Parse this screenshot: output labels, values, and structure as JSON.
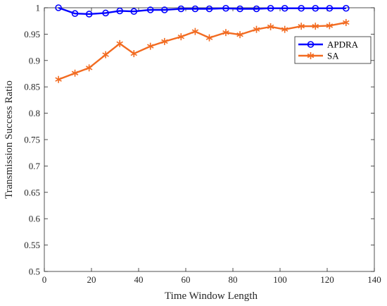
{
  "chart_data": {
    "type": "line",
    "xlabel": "Time Window Length",
    "ylabel": "Transmission Success Ratio",
    "xlim": [
      0,
      140
    ],
    "ylim": [
      0.5,
      1
    ],
    "xticks": [
      0,
      20,
      40,
      60,
      80,
      100,
      120,
      140
    ],
    "yticks": [
      0.5,
      0.55,
      0.6,
      0.65,
      0.7,
      0.75,
      0.8,
      0.85,
      0.9,
      0.95,
      1
    ],
    "grid": false,
    "legend_position": "top-right",
    "x": [
      6,
      13,
      19,
      26,
      32,
      38,
      45,
      51,
      58,
      64,
      70,
      77,
      83,
      90,
      96,
      102,
      109,
      115,
      121,
      128
    ],
    "series": [
      {
        "name": "APDRA",
        "color": "#0000ff",
        "marker": "circle",
        "values": [
          1.0,
          0.989,
          0.988,
          0.99,
          0.994,
          0.993,
          0.996,
          0.996,
          0.998,
          0.998,
          0.998,
          0.999,
          0.998,
          0.998,
          0.999,
          0.999,
          0.999,
          0.999,
          0.999,
          0.999
        ]
      },
      {
        "name": "SA",
        "color": "#f26b21",
        "marker": "asterisk",
        "values": [
          0.864,
          0.876,
          0.886,
          0.911,
          0.932,
          0.913,
          0.927,
          0.936,
          0.945,
          0.955,
          0.943,
          0.953,
          0.949,
          0.959,
          0.964,
          0.959,
          0.965,
          0.965,
          0.966,
          0.972
        ]
      }
    ]
  }
}
